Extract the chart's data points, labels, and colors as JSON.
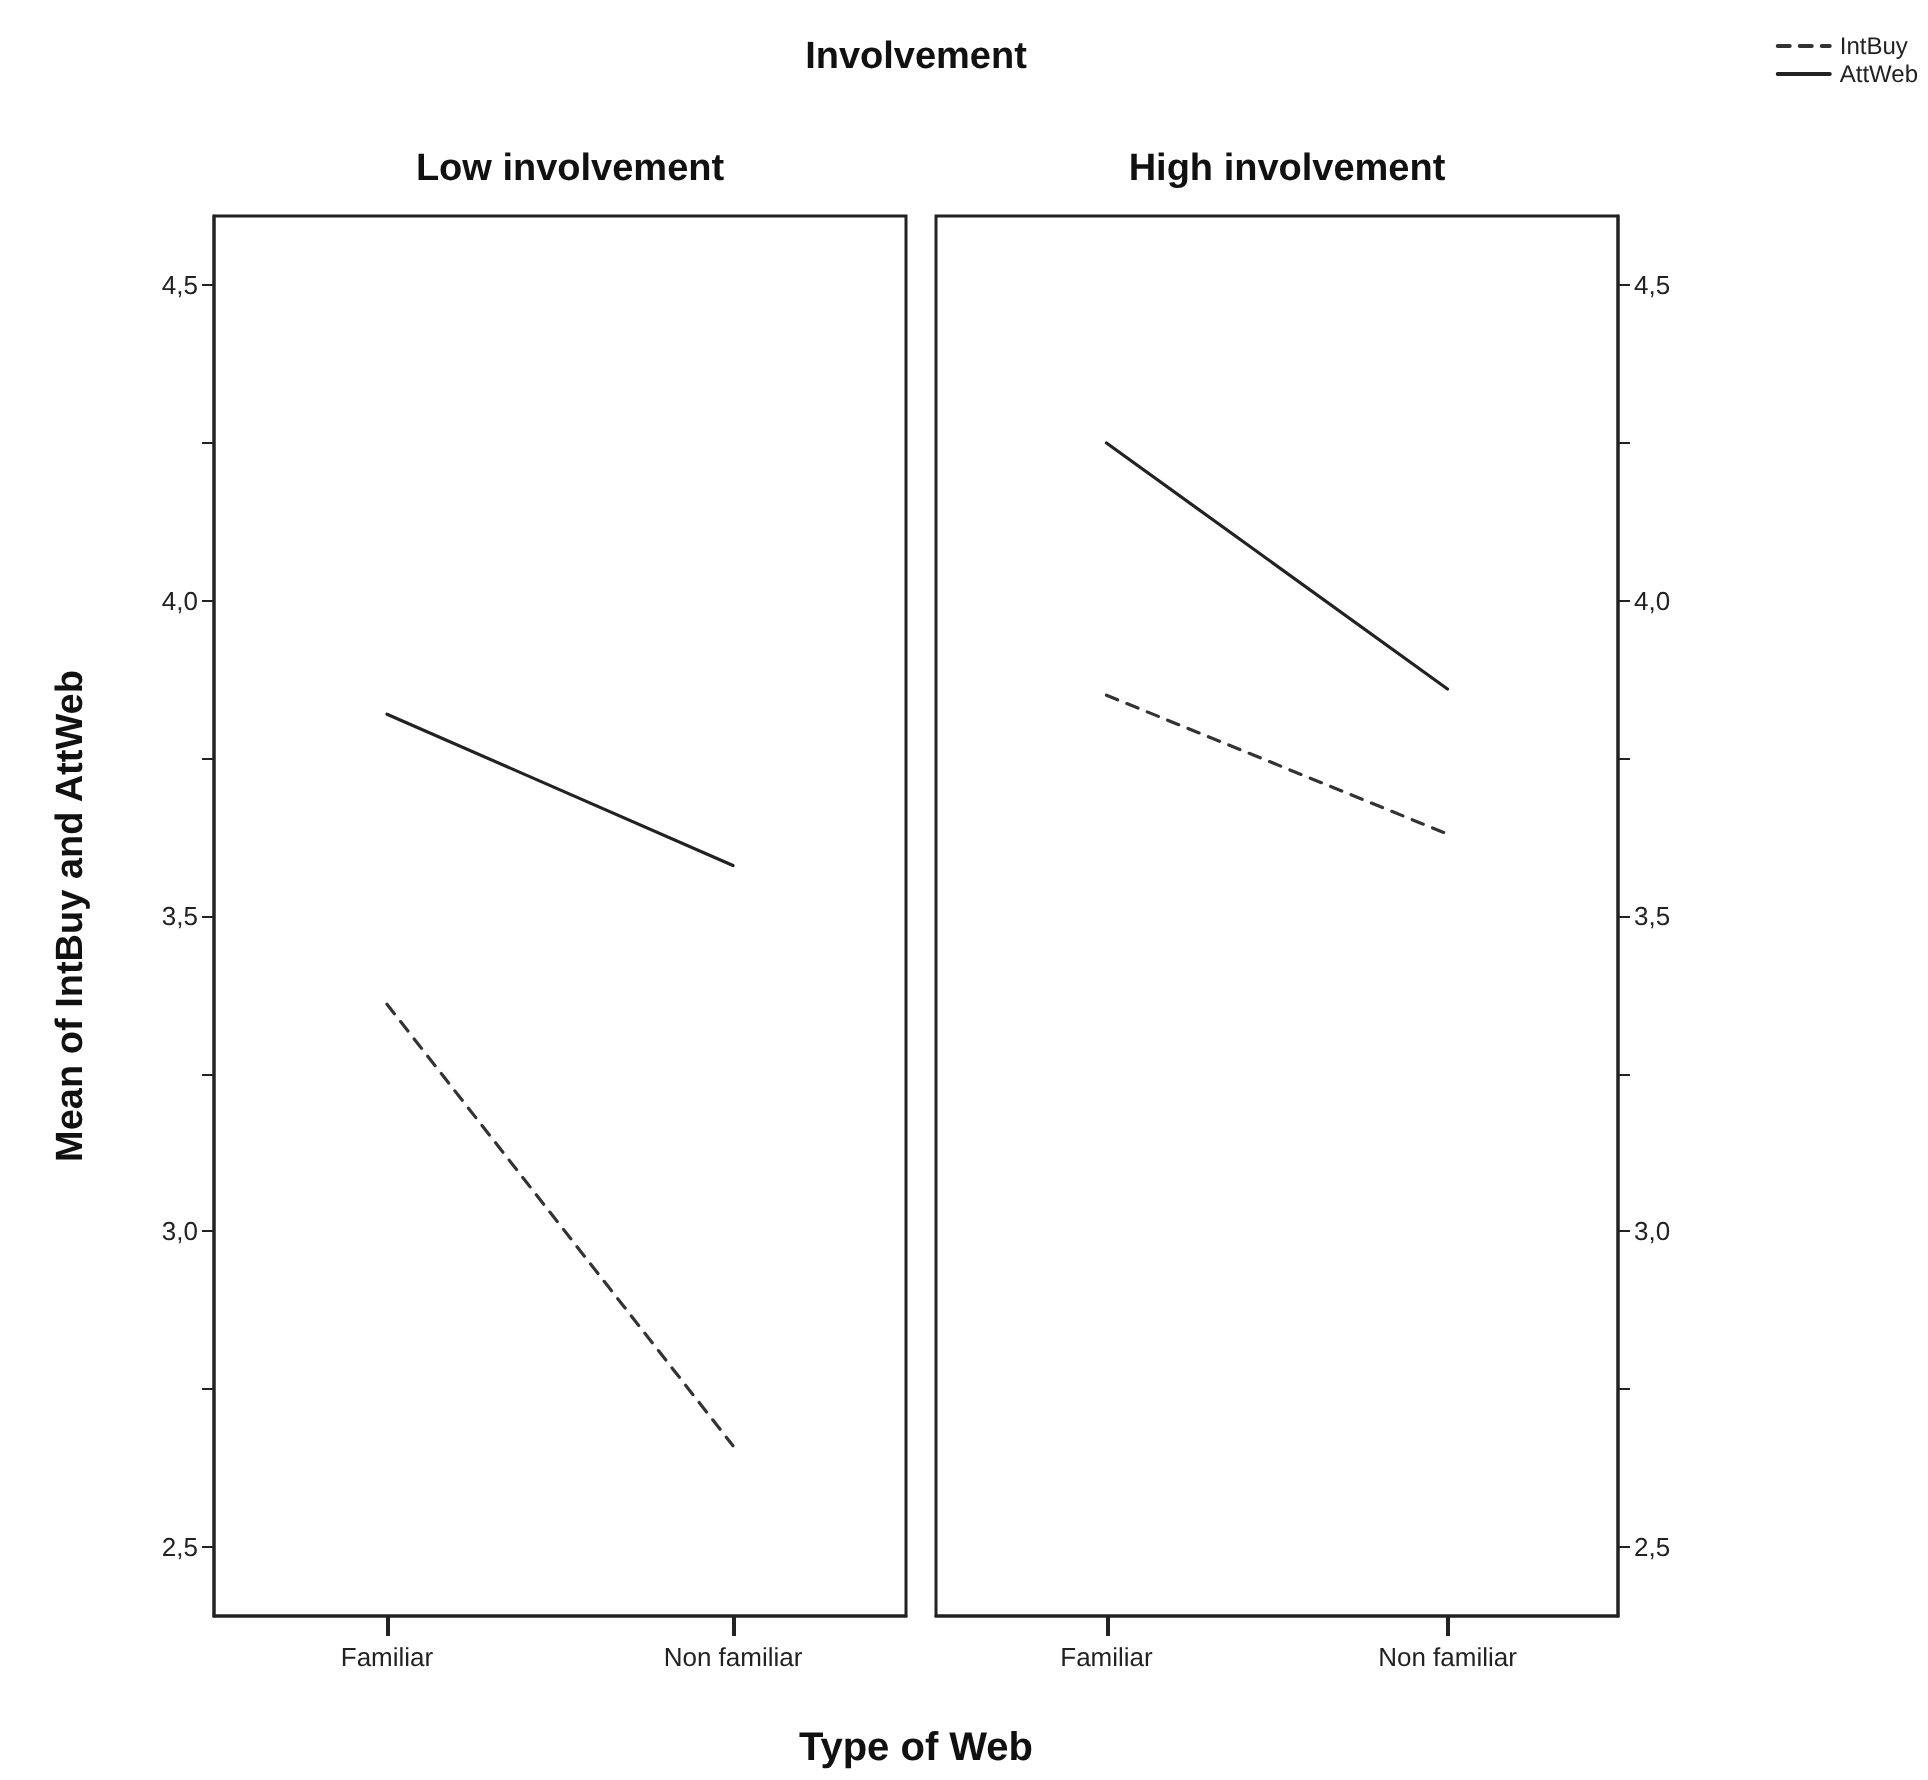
{
  "chart_data": [
    {
      "type": "line",
      "title": "Involvement",
      "subtitle": "Low involvement",
      "xlabel": "Type of Web",
      "ylabel": "Mean of IntBuy and AttWeb",
      "categories": [
        "Familiar",
        "Non familiar"
      ],
      "marker": "none",
      "grid": false,
      "ylim": [
        2.39,
        4.61
      ],
      "yticks": [
        {
          "value": 2.5,
          "label": "2,5"
        },
        {
          "value": 2.75,
          "label": null
        },
        {
          "value": 3.0,
          "label": "3,0"
        },
        {
          "value": 3.25,
          "label": null
        },
        {
          "value": 3.5,
          "label": "3,5"
        },
        {
          "value": 3.75,
          "label": null
        },
        {
          "value": 4.0,
          "label": "4,0"
        },
        {
          "value": 4.25,
          "label": null
        },
        {
          "value": 4.5,
          "label": "4,5"
        }
      ],
      "series": [
        {
          "color": "#333333",
          "line_style": "dashed",
          "values": [
            3.36,
            2.66
          ]
        },
        {
          "color": "#222222",
          "line_style": "solid",
          "values": [
            3.82,
            3.58
          ]
        }
      ]
    },
    {
      "type": "line",
      "subtitle": "High involvement",
      "categories": [
        "Familiar",
        "Non familiar"
      ],
      "marker": "none",
      "grid": false,
      "legend": "top right",
      "y2lim": [
        2.39,
        4.61
      ],
      "y2ticks": [
        {
          "value": 2.5,
          "label": "2,5"
        },
        {
          "value": 2.75,
          "label": null
        },
        {
          "value": 3.0,
          "label": "3,0"
        },
        {
          "value": 3.25,
          "label": null
        },
        {
          "value": 3.5,
          "label": "3,5"
        },
        {
          "value": 3.75,
          "label": null
        },
        {
          "value": 4.0,
          "label": "4,0"
        },
        {
          "value": 4.25,
          "label": null
        },
        {
          "value": 4.5,
          "label": "4,5"
        }
      ],
      "series": [
        {
          "name": "IntBuy",
          "color": "#333333",
          "line_style": "dashed",
          "axis": "y2",
          "values": [
            3.85,
            3.63
          ]
        },
        {
          "name": "AttWeb",
          "color": "#222222",
          "line_style": "solid",
          "axis": "y2",
          "values": [
            4.25,
            3.86
          ]
        }
      ]
    }
  ]
}
